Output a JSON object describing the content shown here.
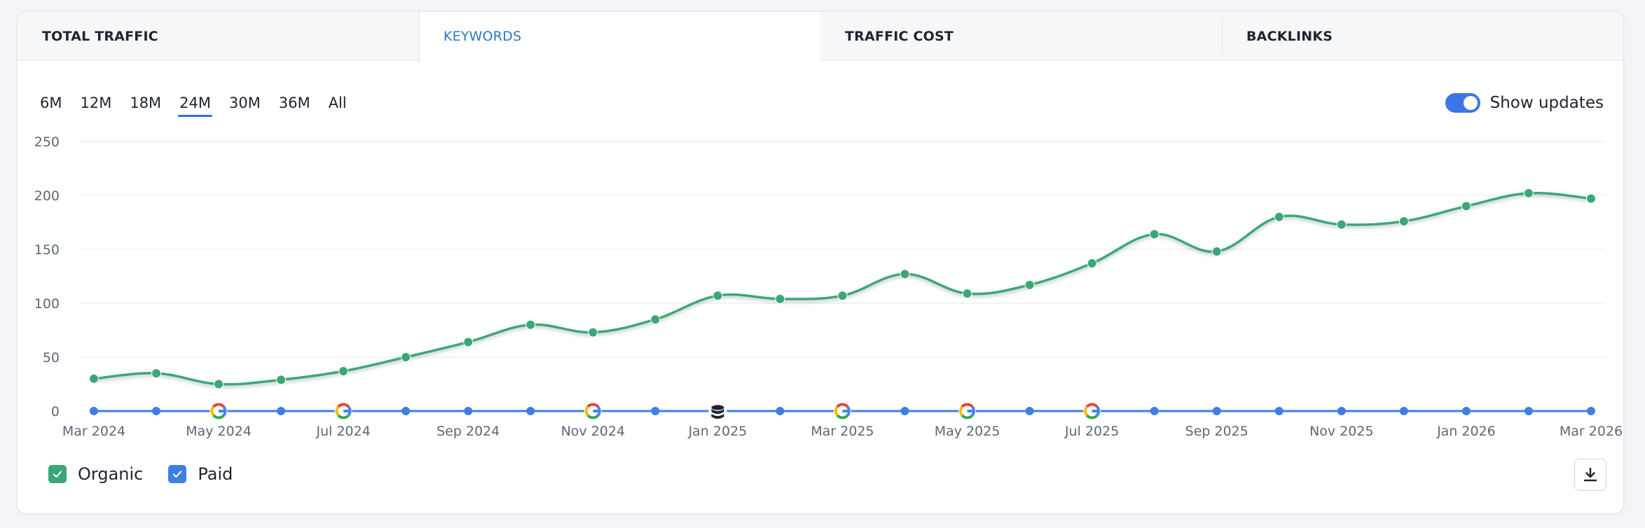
{
  "tabs": [
    {
      "label": "TOTAL TRAFFIC",
      "active": false
    },
    {
      "label": "KEYWORDS",
      "active": true
    },
    {
      "label": "TRAFFIC COST",
      "active": false
    },
    {
      "label": "BACKLINKS",
      "active": false
    }
  ],
  "periods": [
    {
      "label": "6M",
      "active": false
    },
    {
      "label": "12M",
      "active": false
    },
    {
      "label": "18M",
      "active": false
    },
    {
      "label": "24M",
      "active": true
    },
    {
      "label": "30M",
      "active": false
    },
    {
      "label": "36M",
      "active": false
    },
    {
      "label": "All",
      "active": false
    }
  ],
  "updates_toggle": {
    "label": "Show updates",
    "on": true
  },
  "legend": {
    "organic_label": "Organic",
    "paid_label": "Paid"
  },
  "colors": {
    "organic": "#3aa876",
    "paid": "#3f7fe3",
    "active_tab": "#2b79c2",
    "toggle": "#3d74e8",
    "grid": "#e4e7ec",
    "axis_text": "#5d6777"
  },
  "chart_data": {
    "type": "line",
    "title": "",
    "xlabel": "",
    "ylabel": "",
    "ylim": [
      0,
      250
    ],
    "yticks": [
      0,
      50,
      100,
      150,
      200,
      250
    ],
    "grid": true,
    "legend_position": "bottom-left",
    "x": [
      "2024-03",
      "2024-04",
      "2024-05",
      "2024-06",
      "2024-07",
      "2024-08",
      "2024-09",
      "2024-10",
      "2024-11",
      "2024-12",
      "2025-01",
      "2025-02",
      "2025-03",
      "2025-04",
      "2025-05",
      "2025-06",
      "2025-07",
      "2025-08",
      "2025-09",
      "2025-10",
      "2025-11",
      "2025-12",
      "2026-01",
      "2026-02",
      "2026-03"
    ],
    "xtick_labels": [
      "Mar 2024",
      "May 2024",
      "Jul 2024",
      "Sep 2024",
      "Nov 2024",
      "Jan 2025",
      "Mar 2025",
      "May 2025",
      "Jul 2025",
      "Sep 2025",
      "Nov 2025",
      "Jan 2026",
      "Mar 2026"
    ],
    "xtick_positions": [
      "2024-03",
      "2024-05",
      "2024-07",
      "2024-09",
      "2024-11",
      "2025-01",
      "2025-03",
      "2025-05",
      "2025-07",
      "2025-09",
      "2025-11",
      "2026-01",
      "2026-03"
    ],
    "series": [
      {
        "name": "Organic",
        "values": [
          30,
          35,
          25,
          29,
          37,
          50,
          64,
          80,
          73,
          85,
          107,
          104,
          107,
          127,
          109,
          117,
          137,
          164,
          148,
          180,
          173,
          176,
          190,
          202,
          197
        ]
      },
      {
        "name": "Paid",
        "values": [
          0,
          0,
          0,
          0,
          0,
          0,
          0,
          0,
          0,
          0,
          0,
          0,
          0,
          0,
          0,
          0,
          0,
          0,
          0,
          0,
          0,
          0,
          0,
          0,
          0
        ]
      }
    ],
    "update_markers": [
      {
        "x": "2024-05",
        "icon": "google-icon"
      },
      {
        "x": "2024-07",
        "icon": "google-icon"
      },
      {
        "x": "2024-11",
        "icon": "google-icon"
      },
      {
        "x": "2025-01",
        "icon": "database-icon"
      },
      {
        "x": "2025-03",
        "icon": "google-icon"
      },
      {
        "x": "2025-05",
        "icon": "google-icon"
      },
      {
        "x": "2025-07",
        "icon": "google-icon"
      }
    ]
  }
}
